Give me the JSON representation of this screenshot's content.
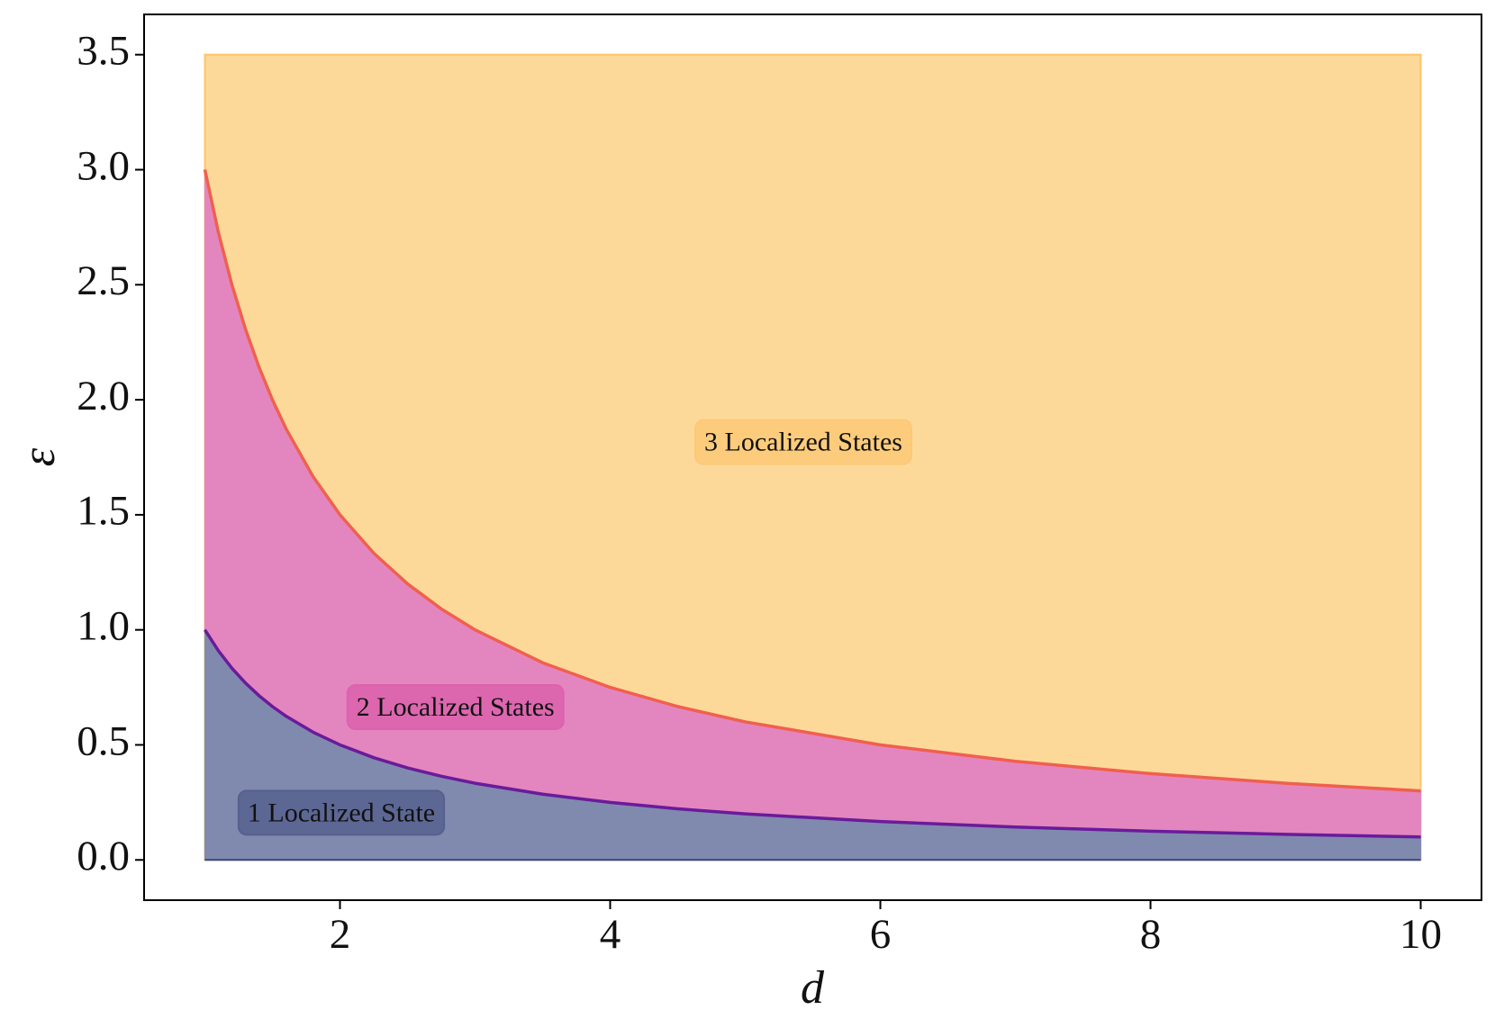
{
  "chart_data": {
    "type": "area",
    "xlabel": "d",
    "ylabel": "ε",
    "x": [
      1,
      1.1,
      1.2,
      1.3,
      1.4,
      1.5,
      1.6,
      1.8,
      2,
      2.25,
      2.5,
      2.75,
      3,
      3.5,
      4,
      4.5,
      5,
      6,
      7,
      8,
      9,
      10
    ],
    "series": [
      {
        "color": "#808aaf",
        "line_color": "#6a1b9a",
        "values": [
          1,
          0.9091,
          0.8333,
          0.7692,
          0.7143,
          0.6667,
          0.625,
          0.5556,
          0.5,
          0.4444,
          0.4,
          0.3636,
          0.3333,
          0.2857,
          0.25,
          0.2222,
          0.2,
          0.1667,
          0.1429,
          0.125,
          0.1111,
          0.1
        ]
      },
      {
        "color": "#e386c0",
        "line_color": "#f0604e",
        "values": [
          3,
          2.7273,
          2.5,
          2.3077,
          2.1429,
          2,
          1.875,
          1.6667,
          1.5,
          1.3333,
          1.2,
          1.0909,
          1,
          0.8571,
          0.75,
          0.6667,
          0.6,
          0.5,
          0.4286,
          0.375,
          0.3333,
          0.3
        ]
      }
    ],
    "fill_top": 3.5,
    "fill_top_color": "#fdd999",
    "annotations": [
      {
        "text": "1 Localized State",
        "color": "#56608f"
      },
      {
        "text": "2 Localized States",
        "color": "#dc62ac"
      },
      {
        "text": "3 Localized States",
        "color": "#fcc977"
      }
    ],
    "xlim": [
      0.55,
      10.45
    ],
    "ylim": [
      -0.175,
      3.675
    ],
    "xticks": [
      2,
      4,
      6,
      8,
      10
    ],
    "yticks": [
      {
        "value": 0,
        "label": "0.0"
      },
      {
        "value": 0.5,
        "label": "0.5"
      },
      {
        "value": 1,
        "label": "1.0"
      },
      {
        "value": 1.5,
        "label": "1.5"
      },
      {
        "value": 2,
        "label": "2.0"
      },
      {
        "value": 2.5,
        "label": "2.5"
      },
      {
        "value": 3,
        "label": "3.0"
      },
      {
        "value": 3.5,
        "label": "3.5"
      }
    ]
  }
}
